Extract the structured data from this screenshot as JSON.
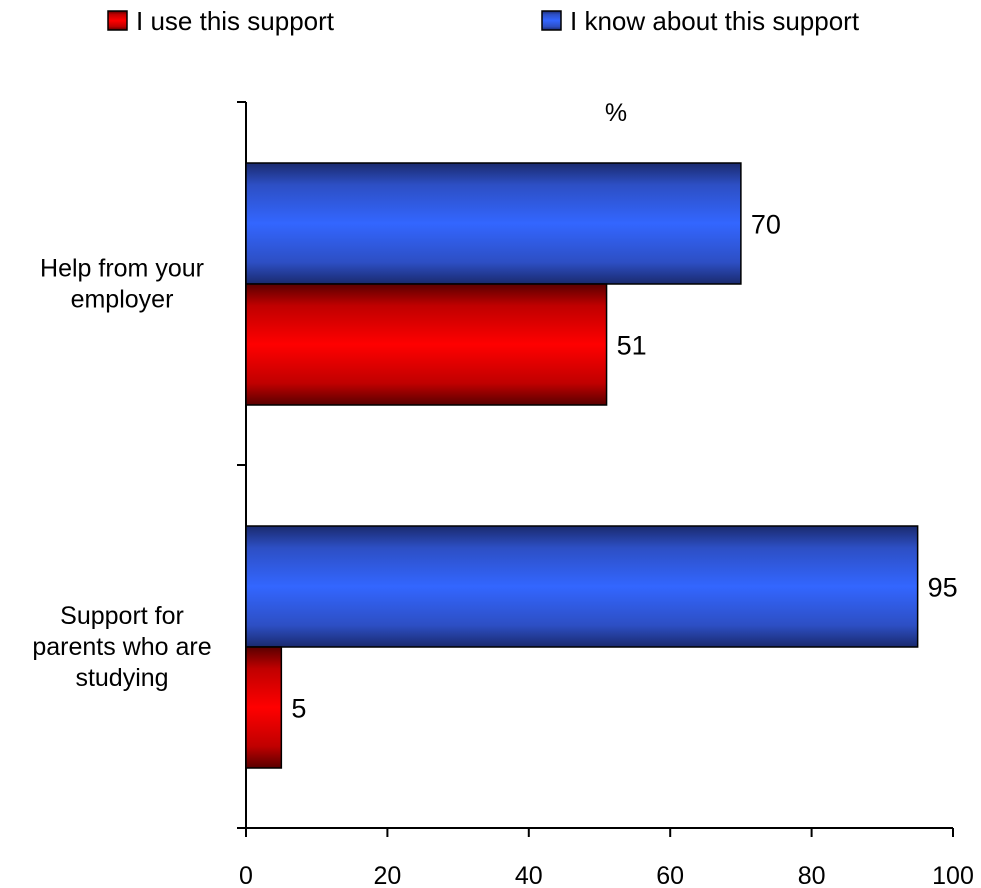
{
  "chart_data": {
    "type": "bar",
    "orientation": "horizontal",
    "unit": "%",
    "categories": [
      [
        "Help from your",
        "employer"
      ],
      [
        "Support for",
        "parents who are",
        "studying"
      ]
    ],
    "series": [
      {
        "name": "I know about this support",
        "color": "#3366ff",
        "values": [
          70,
          95
        ]
      },
      {
        "name": "I use this support",
        "color": "#ff0000",
        "values": [
          51,
          5
        ]
      }
    ],
    "legend": [
      "I use this support",
      "I know about this support"
    ],
    "legend_colors": [
      "#ff0000",
      "#3366ff"
    ],
    "legend_position": "top",
    "xlim": [
      0,
      100
    ],
    "xticks": [
      0,
      20,
      40,
      60,
      80,
      100
    ],
    "grid": false
  }
}
